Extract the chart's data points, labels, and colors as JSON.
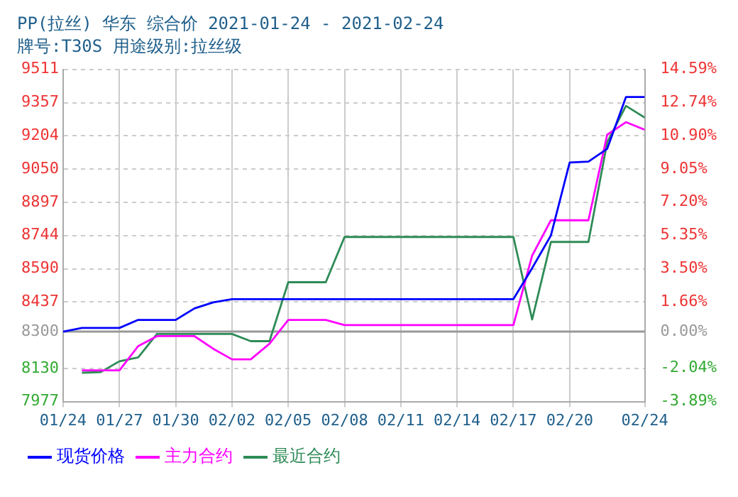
{
  "chart_data": {
    "type": "line",
    "title": "PP(拉丝) 华东 综合价 2021-01-24 - 2021-02-24",
    "subtitle": "牌号:T30S 用途级别:拉丝级",
    "x": [
      "2021-01-24",
      "2021-01-25",
      "2021-01-26",
      "2021-01-27",
      "2021-01-28",
      "2021-01-29",
      "2021-01-30",
      "2021-01-31",
      "2021-02-01",
      "2021-02-02",
      "2021-02-03",
      "2021-02-04",
      "2021-02-05",
      "2021-02-06",
      "2021-02-07",
      "2021-02-08",
      "2021-02-09",
      "2021-02-10",
      "2021-02-11",
      "2021-02-12",
      "2021-02-13",
      "2021-02-14",
      "2021-02-15",
      "2021-02-16",
      "2021-02-17",
      "2021-02-18",
      "2021-02-19",
      "2021-02-20",
      "2021-02-21",
      "2021-02-22",
      "2021-02-23",
      "2021-02-24"
    ],
    "series": [
      {
        "name": "现货价格",
        "color": "#0000ff",
        "values": [
          8300,
          8317,
          8317,
          8317,
          8354,
          8354,
          8354,
          8407,
          8435,
          8450,
          8450,
          8450,
          8450,
          8450,
          8450,
          8450,
          8450,
          8450,
          8450,
          8450,
          8450,
          8450,
          8450,
          8450,
          8450,
          8593,
          8744,
          9081,
          9085,
          9144,
          9383,
          9383
        ]
      },
      {
        "name": "主力合约",
        "color": "#ff00ff",
        "values": [
          null,
          8121,
          8121,
          8121,
          8233,
          8279,
          8279,
          8279,
          8221,
          8172,
          8172,
          8244,
          8354,
          8354,
          8354,
          8330,
          8330,
          8330,
          8330,
          8330,
          8330,
          8330,
          8330,
          8330,
          8330,
          8651,
          8814,
          8814,
          8814,
          9209,
          9267,
          9232
        ]
      },
      {
        "name": "最近合约",
        "color": "#2e8b57",
        "values": [
          null,
          8110,
          8113,
          8163,
          8181,
          8289,
          8289,
          8289,
          8289,
          8289,
          8256,
          8256,
          8528,
          8528,
          8528,
          8737,
          8737,
          8737,
          8737,
          8737,
          8737,
          8737,
          8737,
          8737,
          8737,
          8356,
          8714,
          8714,
          8714,
          9174,
          9342,
          9288
        ]
      }
    ],
    "xlim": [
      "2021-01-24",
      "2021-02-24"
    ],
    "xticks": [
      {
        "value": "2021-01-24",
        "label": "01/24"
      },
      {
        "value": "2021-01-27",
        "label": "01/27"
      },
      {
        "value": "2021-01-30",
        "label": "01/30"
      },
      {
        "value": "2021-02-02",
        "label": "02/02"
      },
      {
        "value": "2021-02-05",
        "label": "02/05"
      },
      {
        "value": "2021-02-08",
        "label": "02/08"
      },
      {
        "value": "2021-02-11",
        "label": "02/11"
      },
      {
        "value": "2021-02-14",
        "label": "02/14"
      },
      {
        "value": "2021-02-17",
        "label": "02/17"
      },
      {
        "value": "2021-02-20",
        "label": "02/20"
      },
      {
        "value": "2021-02-24",
        "label": "02/24"
      }
    ],
    "ylim": [
      7977,
      9511
    ],
    "yticks": [
      7977,
      8130,
      8300,
      8437,
      8590,
      8744,
      8897,
      9050,
      9204,
      9357,
      9511
    ],
    "y2lim": [
      -3.89,
      14.59
    ],
    "y2ticks": [
      {
        "value": -3.89,
        "label": "-3.89%"
      },
      {
        "value": -2.04,
        "label": "-2.04%"
      },
      {
        "value": 0,
        "label": "0.00%"
      },
      {
        "value": 1.66,
        "label": "1.66%"
      },
      {
        "value": 3.5,
        "label": "3.50%"
      },
      {
        "value": 5.35,
        "label": "5.35%"
      },
      {
        "value": 7.2,
        "label": "7.20%"
      },
      {
        "value": 9.05,
        "label": "9.05%"
      },
      {
        "value": 10.9,
        "label": "10.90%"
      },
      {
        "value": 12.74,
        "label": "12.74%"
      },
      {
        "value": 14.59,
        "label": "14.59%"
      }
    ],
    "ref_lines": [
      {
        "axis": "y",
        "value": 8300,
        "color": "#999999"
      }
    ],
    "grid": true,
    "legend": "bottom",
    "marker": "none",
    "line_style": "solid"
  }
}
